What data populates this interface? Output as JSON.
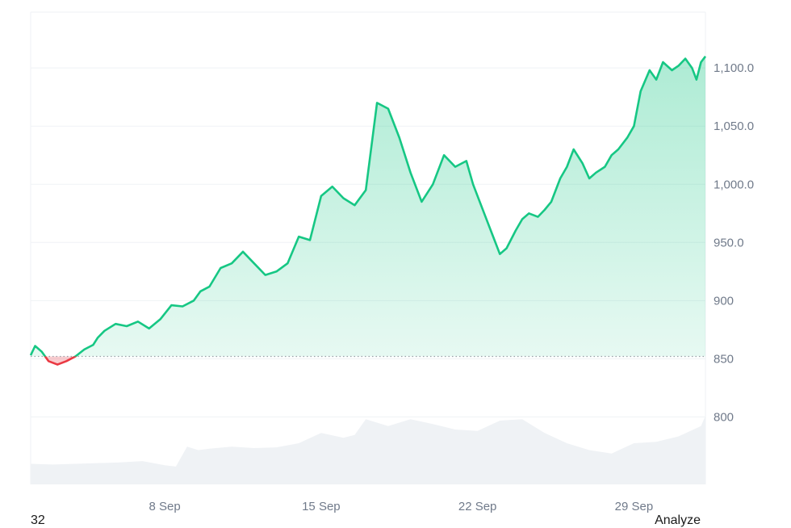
{
  "chart_data": {
    "type": "line",
    "baseline": 852,
    "ylim": [
      742,
      1148
    ],
    "y_ticks": [
      "800",
      "850",
      "900",
      "950.0",
      "1,000.0",
      "1,050.0",
      "1,100.0"
    ],
    "y_tick_values": [
      800,
      850,
      900,
      950,
      1000,
      1050,
      1100
    ],
    "x_ticks": [
      "8 Sep",
      "15 Sep",
      "22 Sep",
      "29 Sep"
    ],
    "x_tick_values": [
      6.0,
      13.0,
      20.0,
      27.0
    ],
    "xlim": [
      0,
      30.2
    ],
    "series": [
      {
        "x": [
          0,
          0.2,
          0.5,
          0.8,
          1.2,
          1.6,
          2.0,
          2.4,
          2.8,
          3.0,
          3.3,
          3.8,
          4.3,
          4.8,
          5.3,
          5.8,
          6.3,
          6.8,
          7.3,
          7.6,
          8.0,
          8.5,
          9.0,
          9.5,
          10.0,
          10.5,
          11.0,
          11.5,
          12.0,
          12.5,
          13.0,
          13.5,
          14.0,
          14.5,
          15.0,
          15.5,
          16.0,
          16.5,
          17.0,
          17.5,
          18.0,
          18.5,
          19.0,
          19.5,
          19.8,
          20.0,
          20.3,
          20.7,
          21.0,
          21.3,
          21.7,
          22.0,
          22.3,
          22.7,
          23.0,
          23.3,
          23.7,
          24.0,
          24.3,
          24.7,
          25.0,
          25.3,
          25.7,
          26.0,
          26.3,
          26.7,
          27.0,
          27.3,
          27.7,
          28.0,
          28.3,
          28.7,
          29.0,
          29.3,
          29.6,
          29.8,
          30.0,
          30.2
        ],
        "y": [
          853,
          861,
          856,
          848,
          845,
          848,
          852,
          858,
          862,
          868,
          874,
          880,
          878,
          882,
          876,
          884,
          896,
          895,
          900,
          908,
          912,
          928,
          932,
          942,
          932,
          922,
          925,
          932,
          955,
          952,
          990,
          998,
          988,
          982,
          995,
          1070,
          1065,
          1040,
          1010,
          985,
          1000,
          1025,
          1015,
          1020,
          1000,
          990,
          975,
          955,
          940,
          945,
          960,
          970,
          975,
          972,
          978,
          985,
          1005,
          1015,
          1030,
          1018,
          1005,
          1010,
          1015,
          1025,
          1030,
          1040,
          1050,
          1080,
          1098,
          1090,
          1105,
          1098,
          1102,
          1108,
          1100,
          1090,
          1105,
          1110
        ]
      }
    ],
    "volume": {
      "x": [
        0,
        1,
        2,
        3,
        4,
        5,
        6,
        6.5,
        7,
        7.5,
        8,
        9,
        10,
        11,
        12,
        13,
        14,
        14.5,
        15,
        15.5,
        16,
        17,
        18,
        19,
        20,
        21,
        22,
        23,
        24,
        25,
        26,
        27,
        28,
        29,
        30,
        30.2
      ],
      "y": [
        0.3,
        0.29,
        0.3,
        0.31,
        0.32,
        0.34,
        0.28,
        0.26,
        0.55,
        0.5,
        0.52,
        0.55,
        0.53,
        0.54,
        0.6,
        0.75,
        0.68,
        0.72,
        0.95,
        0.9,
        0.85,
        0.95,
        0.88,
        0.8,
        0.78,
        0.93,
        0.95,
        0.75,
        0.6,
        0.5,
        0.45,
        0.6,
        0.62,
        0.7,
        0.85,
        1.0
      ]
    },
    "colors": {
      "up": "#16c784",
      "down": "#ea3943",
      "volume": "#eff2f5",
      "grid": "#eff2f5"
    }
  },
  "footer": {
    "left": "32",
    "right": "Analyze"
  }
}
